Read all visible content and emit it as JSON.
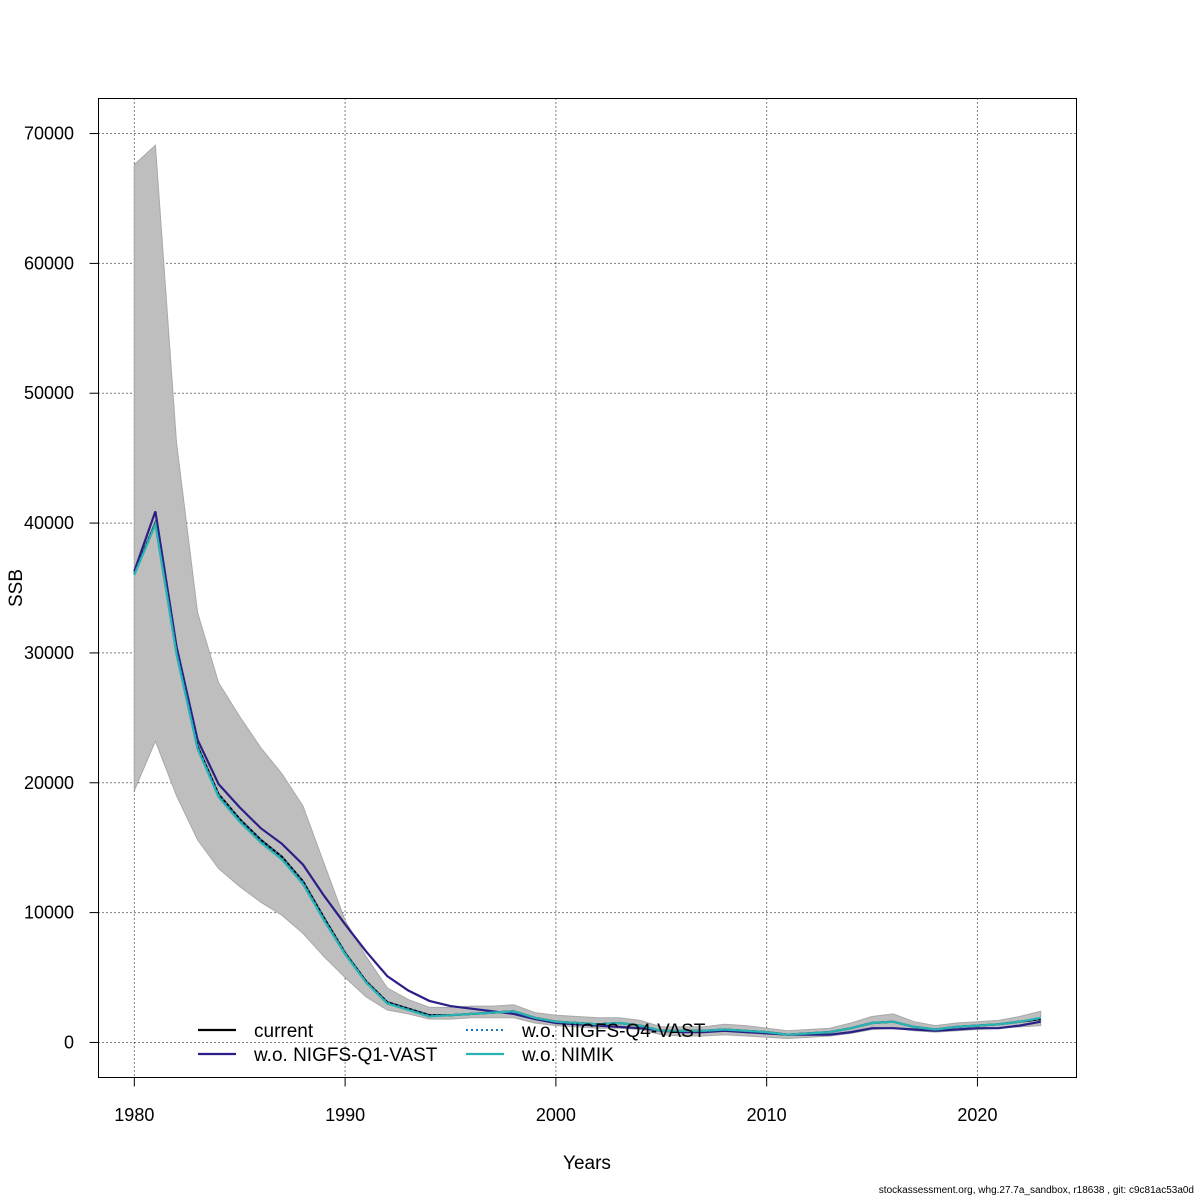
{
  "chart_data": {
    "type": "line",
    "xlabel": "Years",
    "ylabel": "SSB",
    "xlim": [
      1978.3,
      2024.7
    ],
    "ylim": [
      -2700,
      72700
    ],
    "xticks": [
      1980,
      1990,
      2000,
      2010,
      2020
    ],
    "yticks": [
      0,
      10000,
      20000,
      30000,
      40000,
      50000,
      60000,
      70000
    ],
    "grid": true,
    "legend_position": "bottom",
    "years": [
      1980,
      1981,
      1982,
      1983,
      1984,
      1985,
      1986,
      1987,
      1988,
      1989,
      1990,
      1991,
      1992,
      1993,
      1994,
      1995,
      1996,
      1997,
      1998,
      1999,
      2000,
      2001,
      2002,
      2003,
      2004,
      2005,
      2006,
      2007,
      2008,
      2009,
      2010,
      2011,
      2012,
      2013,
      2014,
      2015,
      2016,
      2017,
      2018,
      2019,
      2020,
      2021,
      2022,
      2023
    ],
    "band_lower": [
      19400,
      23200,
      19000,
      15600,
      13400,
      12000,
      10800,
      9800,
      8400,
      6600,
      5000,
      3500,
      2500,
      2200,
      1800,
      1800,
      1900,
      1900,
      1900,
      1500,
      1300,
      1200,
      1100,
      1100,
      1000,
      600,
      500,
      500,
      600,
      500,
      400,
      300,
      400,
      500,
      700,
      1000,
      1100,
      900,
      800,
      900,
      1000,
      1100,
      1200,
      1300
    ],
    "band_upper": [
      67600,
      69100,
      46200,
      33100,
      27700,
      25100,
      22700,
      20700,
      18200,
      13800,
      9400,
      6600,
      4200,
      3300,
      2700,
      2700,
      2800,
      2800,
      2900,
      2300,
      2100,
      2000,
      1900,
      1900,
      1700,
      1200,
      1200,
      1200,
      1400,
      1300,
      1100,
      900,
      1000,
      1100,
      1500,
      2000,
      2200,
      1600,
      1300,
      1500,
      1600,
      1700,
      2000,
      2400
    ],
    "series": [
      {
        "name": "current",
        "color": "#000000",
        "style": "solid",
        "values": [
          36100,
          40000,
          30100,
          22800,
          19100,
          17200,
          15600,
          14300,
          12400,
          9600,
          6900,
          4700,
          3100,
          2600,
          2100,
          2100,
          2200,
          2300,
          2400,
          1900,
          1600,
          1500,
          1400,
          1500,
          1300,
          900,
          900,
          900,
          1000,
          900,
          800,
          600,
          700,
          800,
          1100,
          1500,
          1600,
          1200,
          1000,
          1200,
          1300,
          1400,
          1600,
          1800
        ]
      },
      {
        "name": "w.o. NIGFS-Q1-VAST",
        "color": "#2a1f86",
        "style": "solid",
        "values": [
          36300,
          40900,
          30500,
          23300,
          19900,
          18100,
          16500,
          15300,
          13700,
          11300,
          9100,
          7000,
          5100,
          4000,
          3200,
          2800,
          2600,
          2400,
          2200,
          1800,
          1500,
          1400,
          1300,
          1200,
          1100,
          900,
          800,
          800,
          900,
          800,
          700,
          600,
          600,
          600,
          800,
          1100,
          1100,
          1000,
          900,
          1000,
          1100,
          1100,
          1300,
          1600
        ]
      },
      {
        "name": "w.o. NIGFS-Q4-VAST",
        "color": "#1a78c2",
        "style": "dotted",
        "values": [
          36100,
          40000,
          30100,
          22800,
          19100,
          17200,
          15600,
          14300,
          12400,
          9600,
          6900,
          4700,
          3100,
          2600,
          2100,
          2100,
          2200,
          2300,
          2400,
          1900,
          1600,
          1500,
          1400,
          1500,
          1300,
          900,
          900,
          900,
          1000,
          900,
          800,
          600,
          700,
          800,
          1100,
          1500,
          1600,
          1200,
          1000,
          1200,
          1300,
          1400,
          1600,
          1800
        ]
      },
      {
        "name": "w.o. NIMIK",
        "color": "#2ab3b3",
        "style": "solid",
        "values": [
          36000,
          39900,
          29900,
          22600,
          18900,
          17000,
          15400,
          14100,
          12200,
          9400,
          6800,
          4600,
          3000,
          2500,
          2000,
          2100,
          2200,
          2300,
          2400,
          1900,
          1600,
          1500,
          1400,
          1500,
          1300,
          900,
          900,
          900,
          1000,
          900,
          800,
          600,
          700,
          800,
          1100,
          1500,
          1600,
          1200,
          1000,
          1200,
          1300,
          1400,
          1600,
          1900
        ]
      }
    ]
  },
  "footer": {
    "credit": "stockassessment.org, whg.27.7a_sandbox, r18638 , git: c9c81ac53a0d"
  },
  "colors": {
    "band": "#bebebe",
    "grid": "#000000"
  }
}
